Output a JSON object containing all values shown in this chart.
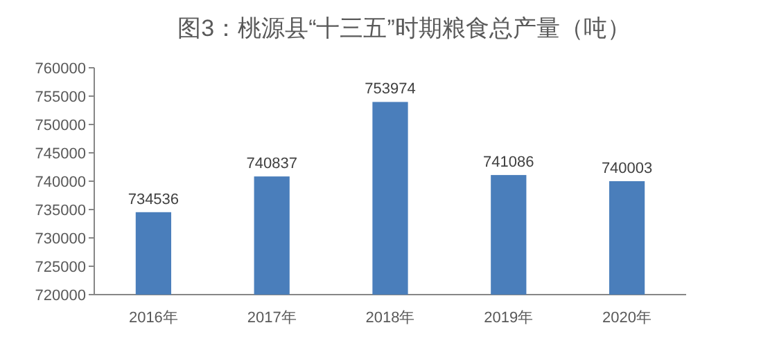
{
  "chart_data": {
    "type": "bar",
    "title": "图3：桃源县“十三五”时期粮食总产量（吨）",
    "categories": [
      "2016年",
      "2017年",
      "2018年",
      "2019年",
      "2020年"
    ],
    "series": [
      {
        "color": "#4a7ebb",
        "values": [
          734536,
          740837,
          753974,
          741086,
          740003
        ]
      }
    ],
    "ylim": [
      720000,
      760000
    ],
    "yticks": [
      720000,
      725000,
      730000,
      735000,
      740000,
      745000,
      750000,
      755000,
      760000
    ],
    "data_labels": true,
    "grid": false
  }
}
